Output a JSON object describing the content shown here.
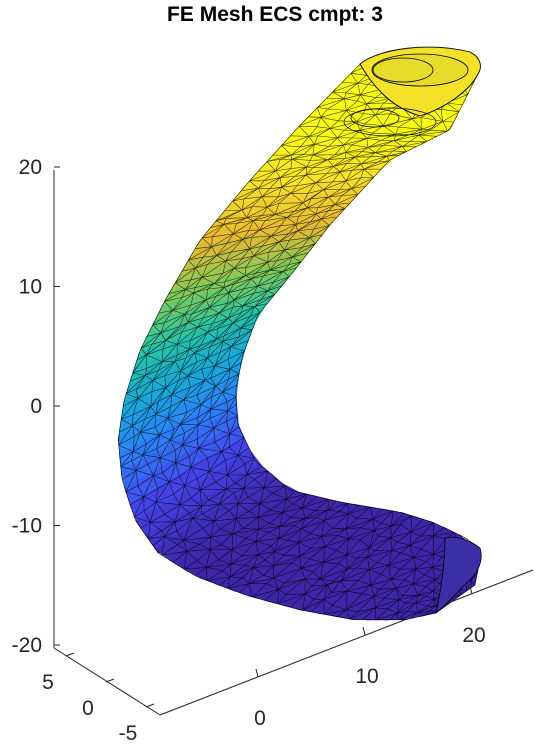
{
  "chart_data": {
    "type": "3d-surface-mesh",
    "title": "FE Mesh ECS cmpt: 3",
    "xlabel": "",
    "ylabel": "",
    "zlabel": "",
    "x_ticks": [
      "0",
      "10",
      "20"
    ],
    "y_ticks": [
      "5",
      "0",
      "-5"
    ],
    "z_ticks": [
      "20",
      "10",
      "0",
      "-10",
      "-20"
    ],
    "xlim": [
      -5,
      27
    ],
    "ylim": [
      -6,
      7
    ],
    "zlim": [
      -20,
      23
    ],
    "grid": false,
    "legend": "none",
    "colormap": [
      "#3e26a8",
      "#4443e8",
      "#2d7ff9",
      "#1aa9d7",
      "#27c2a5",
      "#7fcb5b",
      "#e9b934",
      "#f7e02a",
      "#f9fb15"
    ],
    "edge_color": "#000000",
    "centerline": [
      {
        "x": 26,
        "y": 0,
        "z": -12
      },
      {
        "x": 18,
        "y": 0,
        "z": -12
      },
      {
        "x": 8,
        "y": 0,
        "z": -10
      },
      {
        "x": 1,
        "y": 0,
        "z": -6
      },
      {
        "x": -1,
        "y": 0,
        "z": 0
      },
      {
        "x": 1,
        "y": 0,
        "z": 7
      },
      {
        "x": 5,
        "y": 0,
        "z": 13
      },
      {
        "x": 10,
        "y": 0,
        "z": 18
      },
      {
        "x": 14,
        "y": 0,
        "z": 22
      }
    ],
    "tube_radius": 4
  }
}
